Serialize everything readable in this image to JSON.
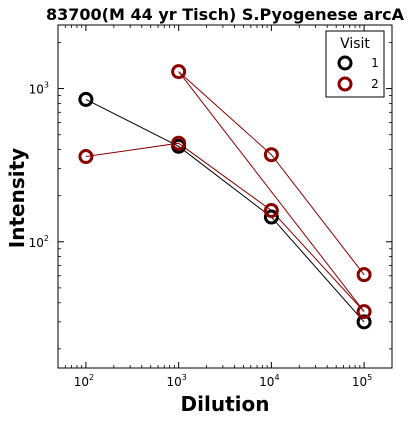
{
  "chart_data": {
    "type": "scatter",
    "title": "83700(M 44 yr Tisch) S.Pyogenese arcA",
    "xlabel": "Dilution",
    "ylabel": "Intensity",
    "xscale": "log",
    "yscale": "log",
    "xlim": [
      50,
      200000
    ],
    "ylim": [
      15,
      2600
    ],
    "x_ticks": [
      {
        "base": "10",
        "exp": "2",
        "value": 100
      },
      {
        "base": "10",
        "exp": "3",
        "value": 1000
      },
      {
        "base": "10",
        "exp": "4",
        "value": 10000
      },
      {
        "base": "10",
        "exp": "5",
        "value": 100000
      }
    ],
    "y_ticks": [
      {
        "base": "10",
        "exp": "2",
        "value": 100
      },
      {
        "base": "10",
        "exp": "3",
        "value": 1000
      }
    ],
    "legend": {
      "title": "Visit",
      "position": "upper right"
    },
    "series": [
      {
        "name": "1",
        "color": "#000000",
        "lines": [
          [
            [
              100,
              850
            ],
            [
              1000,
              420
            ],
            [
              10000,
              145
            ],
            [
              100000,
              30
            ]
          ]
        ],
        "points": [
          [
            100,
            850
          ],
          [
            1000,
            420
          ],
          [
            10000,
            145
          ],
          [
            100000,
            30
          ]
        ]
      },
      {
        "name": "2",
        "color": "#8b0000",
        "lines": [
          [
            [
              100,
              360
            ],
            [
              1000,
              440
            ],
            [
              10000,
              160
            ],
            [
              100000,
              35
            ]
          ],
          [
            [
              1000,
              1290
            ],
            [
              10000,
              370
            ],
            [
              100000,
              61
            ]
          ],
          [
            [
              1000,
              1290
            ],
            [
              100000,
              35
            ]
          ]
        ],
        "points": [
          [
            100,
            360
          ],
          [
            1000,
            440
          ],
          [
            10000,
            160
          ],
          [
            100000,
            35
          ],
          [
            1000,
            1290
          ],
          [
            10000,
            370
          ],
          [
            100000,
            61
          ]
        ]
      }
    ]
  }
}
